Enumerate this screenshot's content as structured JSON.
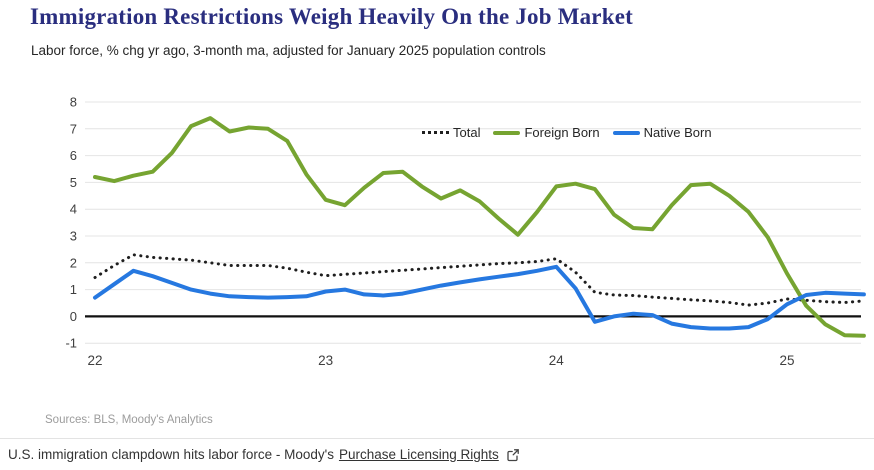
{
  "header": {
    "title": "Immigration Restrictions Weigh Heavily On the Job Market",
    "subtitle": "Labor force, % chg yr ago, 3-month ma, adjusted for January 2025 population controls"
  },
  "colors": {
    "title_navy": "#2a2e7f",
    "total_black": "#1f1f1f",
    "foreign_born_green": "#76a431",
    "native_born_blue": "#2678e0",
    "gridline": "#e4e4e4",
    "zero_line": "#111111",
    "axis_text": "#3f3f3f"
  },
  "legend": {
    "items": [
      {
        "label": "Total",
        "style": "dotted",
        "color": "#1f1f1f"
      },
      {
        "label": "Foreign Born",
        "style": "solid",
        "color": "#76a431"
      },
      {
        "label": "Native Born",
        "style": "solid",
        "color": "#2678e0"
      }
    ]
  },
  "chart_data": {
    "type": "line",
    "title": "Immigration Restrictions Weigh Heavily On the Job Market",
    "subtitle": "Labor force, % chg yr ago, 3-month ma, adjusted for January 2025 population controls",
    "x_unit": "monthly",
    "x_start": "2022-01",
    "x_end": "2025-05",
    "x_tick_labels": [
      "22",
      "23",
      "24",
      "25"
    ],
    "y_ticks": [
      8,
      7,
      6,
      5,
      4,
      3,
      2,
      1,
      0,
      -1
    ],
    "ylim": [
      -1,
      8
    ],
    "grid": "horizontal",
    "legend_position": "top-center",
    "series": [
      {
        "name": "Total",
        "style": "dotted",
        "color": "#1f1f1f",
        "values": [
          1.45,
          1.9,
          2.3,
          2.2,
          2.15,
          2.1,
          2.0,
          1.9,
          1.9,
          1.9,
          1.8,
          1.65,
          1.52,
          1.57,
          1.62,
          1.67,
          1.72,
          1.77,
          1.82,
          1.87,
          1.92,
          1.97,
          2.0,
          2.05,
          2.15,
          1.65,
          0.9,
          0.8,
          0.78,
          0.72,
          0.67,
          0.62,
          0.58,
          0.52,
          0.42,
          0.5,
          0.65,
          0.6,
          0.55,
          0.52,
          0.58
        ]
      },
      {
        "name": "Foreign Born",
        "style": "solid",
        "color": "#76a431",
        "values": [
          5.2,
          5.05,
          5.25,
          5.4,
          6.1,
          7.1,
          7.4,
          6.9,
          7.05,
          7.0,
          6.55,
          5.3,
          4.35,
          4.15,
          4.8,
          5.35,
          5.4,
          4.85,
          4.4,
          4.7,
          4.3,
          3.65,
          3.05,
          3.9,
          4.85,
          4.95,
          4.75,
          3.8,
          3.3,
          3.25,
          4.15,
          4.9,
          4.95,
          4.5,
          3.9,
          2.95,
          1.6,
          0.4,
          -0.3,
          -0.7,
          -0.72
        ]
      },
      {
        "name": "Native Born",
        "style": "solid",
        "color": "#2678e0",
        "values": [
          0.7,
          1.2,
          1.7,
          1.5,
          1.25,
          1.0,
          0.85,
          0.75,
          0.72,
          0.7,
          0.72,
          0.75,
          0.93,
          1.0,
          0.82,
          0.78,
          0.85,
          1.0,
          1.15,
          1.27,
          1.38,
          1.48,
          1.58,
          1.7,
          1.85,
          1.05,
          -0.2,
          0.0,
          0.1,
          0.05,
          -0.27,
          -0.4,
          -0.45,
          -0.45,
          -0.4,
          -0.1,
          0.45,
          0.8,
          0.88,
          0.85,
          0.82
        ]
      }
    ]
  },
  "footer": {
    "sources": "Sources: BLS, Moody's Analytics",
    "caption": "U.S. immigration clampdown hits labor force - Moody's",
    "link_label": "Purchase Licensing Rights"
  }
}
